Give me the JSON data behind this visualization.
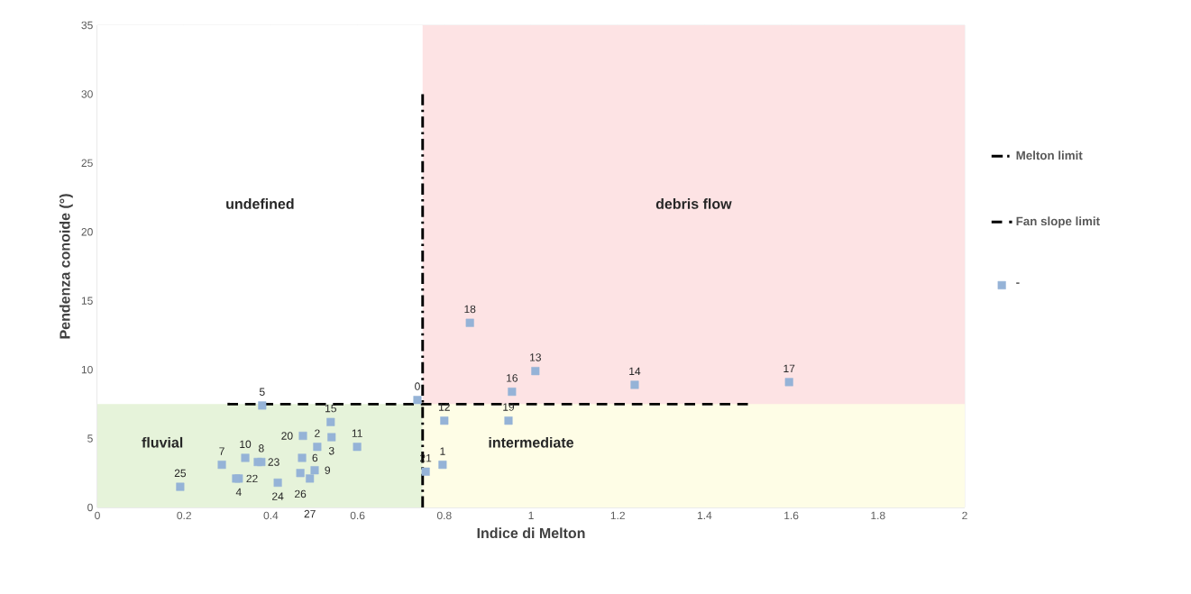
{
  "chart_data": {
    "type": "scatter",
    "xlabel": "Indice di Melton",
    "ylabel": "Pendenza conoide (°)",
    "xlim": [
      0,
      2
    ],
    "ylim": [
      0,
      35
    ],
    "xticks": [
      0,
      0.2,
      0.4,
      0.6,
      0.8,
      1,
      1.2,
      1.4,
      1.6,
      1.8,
      2
    ],
    "yticks": [
      0,
      5,
      10,
      15,
      20,
      25,
      30,
      35
    ],
    "grid": true,
    "legend": "right",
    "series": [
      {
        "type": "area",
        "name": "undefined",
        "color": "#ffffff",
        "x": [
          0,
          0.75
        ],
        "values": [
          35,
          35
        ]
      },
      {
        "type": "area",
        "name": "debris flow",
        "color": "#fde3e4",
        "x": [
          0.75,
          2
        ],
        "values": [
          35,
          35
        ]
      },
      {
        "type": "area",
        "name": "fluvial",
        "color": "#e6f3da",
        "x": [
          0,
          0.75
        ],
        "values": [
          7.5,
          7.5
        ]
      },
      {
        "type": "area",
        "name": "intermediate",
        "color": "#fefde6",
        "x": [
          0.75,
          2
        ],
        "values": [
          7.5,
          7.5
        ]
      },
      {
        "type": "line",
        "name": "Melton limit",
        "color": "#000000",
        "line_style": "dashdot",
        "x": [
          0.75,
          0.75
        ],
        "values": [
          0,
          30
        ]
      },
      {
        "type": "line",
        "name": "Fan slope limit",
        "color": "#000000",
        "line_style": "dashed",
        "x": [
          0.3,
          1.5
        ],
        "values": [
          7.5,
          7.5
        ]
      },
      {
        "name": "-",
        "color": "#95b3d7",
        "marker": "square",
        "x": [
          0.738,
          0.796,
          0.507,
          0.54,
          0.326,
          0.38,
          0.472,
          0.287,
          0.378,
          0.501,
          0.341,
          0.599,
          0.8,
          1.01,
          1.239,
          0.538,
          0.956,
          1.595,
          0.859,
          0.948,
          0.474,
          0.757,
          0.32,
          0.37,
          0.416,
          0.191,
          0.468,
          0.49
        ],
        "values": [
          7.8,
          3.1,
          4.4,
          5.1,
          2.1,
          7.4,
          3.6,
          3.1,
          3.3,
          2.7,
          3.6,
          4.4,
          6.3,
          9.9,
          8.9,
          6.2,
          8.4,
          9.1,
          13.4,
          6.3,
          5.2,
          2.6,
          2.1,
          3.3,
          1.8,
          1.5,
          2.5,
          2.1
        ]
      }
    ],
    "annotations": [
      {
        "text": "0",
        "x": 0.738,
        "y": 7.8
      },
      {
        "text": "1",
        "x": 0.796,
        "y": 3.1
      },
      {
        "text": "2",
        "x": 0.507,
        "y": 4.4
      },
      {
        "text": "3",
        "x": 0.54,
        "y": 5.1
      },
      {
        "text": "4",
        "x": 0.326,
        "y": 2.1
      },
      {
        "text": "5",
        "x": 0.38,
        "y": 7.4
      },
      {
        "text": "6",
        "x": 0.472,
        "y": 3.6
      },
      {
        "text": "7",
        "x": 0.287,
        "y": 3.1
      },
      {
        "text": "8",
        "x": 0.378,
        "y": 3.3
      },
      {
        "text": "9",
        "x": 0.501,
        "y": 2.7
      },
      {
        "text": "10",
        "x": 0.341,
        "y": 3.6
      },
      {
        "text": "11",
        "x": 0.599,
        "y": 4.4
      },
      {
        "text": "12",
        "x": 0.8,
        "y": 6.3
      },
      {
        "text": "13",
        "x": 1.01,
        "y": 9.9
      },
      {
        "text": "14",
        "x": 1.239,
        "y": 8.9
      },
      {
        "text": "15",
        "x": 0.538,
        "y": 6.2
      },
      {
        "text": "16",
        "x": 0.956,
        "y": 8.4
      },
      {
        "text": "17",
        "x": 1.595,
        "y": 9.1
      },
      {
        "text": "18",
        "x": 0.859,
        "y": 13.4
      },
      {
        "text": "19",
        "x": 0.948,
        "y": 6.3
      },
      {
        "text": "20",
        "x": 0.474,
        "y": 5.2
      },
      {
        "text": "21",
        "x": 0.757,
        "y": 2.6
      },
      {
        "text": "22",
        "x": 0.32,
        "y": 2.1
      },
      {
        "text": "23",
        "x": 0.37,
        "y": 3.3
      },
      {
        "text": "24",
        "x": 0.416,
        "y": 1.8
      },
      {
        "text": "25",
        "x": 0.191,
        "y": 1.5
      },
      {
        "text": "26",
        "x": 0.468,
        "y": 2.5
      },
      {
        "text": "27",
        "x": 0.49,
        "y": 2.1
      }
    ]
  }
}
